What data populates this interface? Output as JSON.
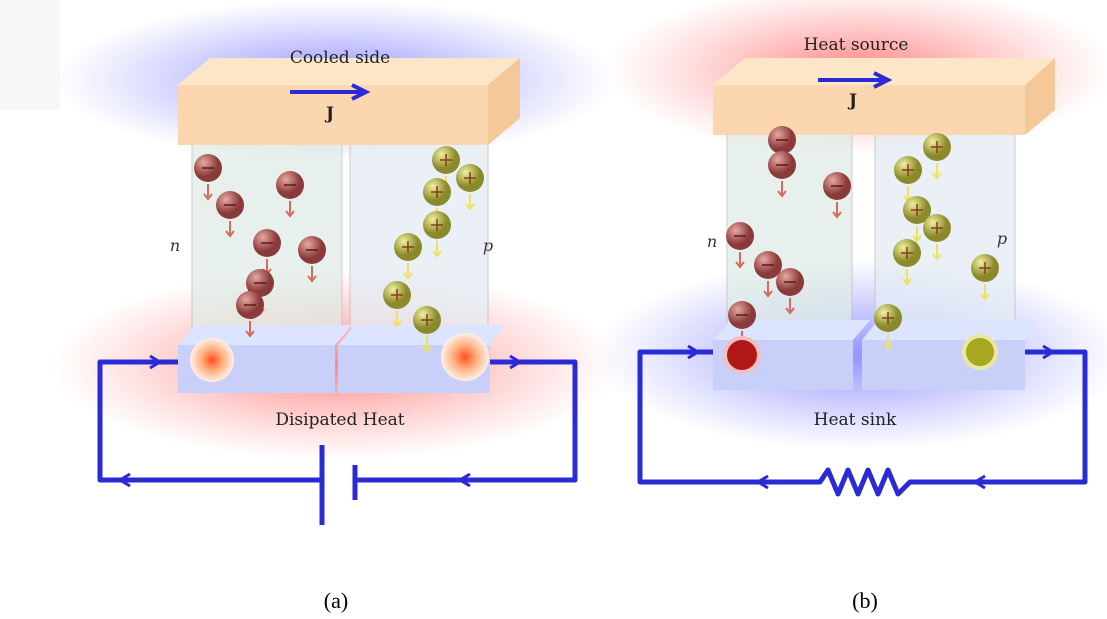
{
  "panels": [
    {
      "top_label": "Cooled side",
      "current": "J",
      "left_leg": "n",
      "right_leg": "p",
      "bottom_label": "Disipated Heat",
      "caption": "(a)"
    },
    {
      "top_label": "Heat source",
      "current": "J",
      "left_leg": "n",
      "right_leg": "p",
      "bottom_label": "Heat sink",
      "caption": "(b)"
    }
  ]
}
